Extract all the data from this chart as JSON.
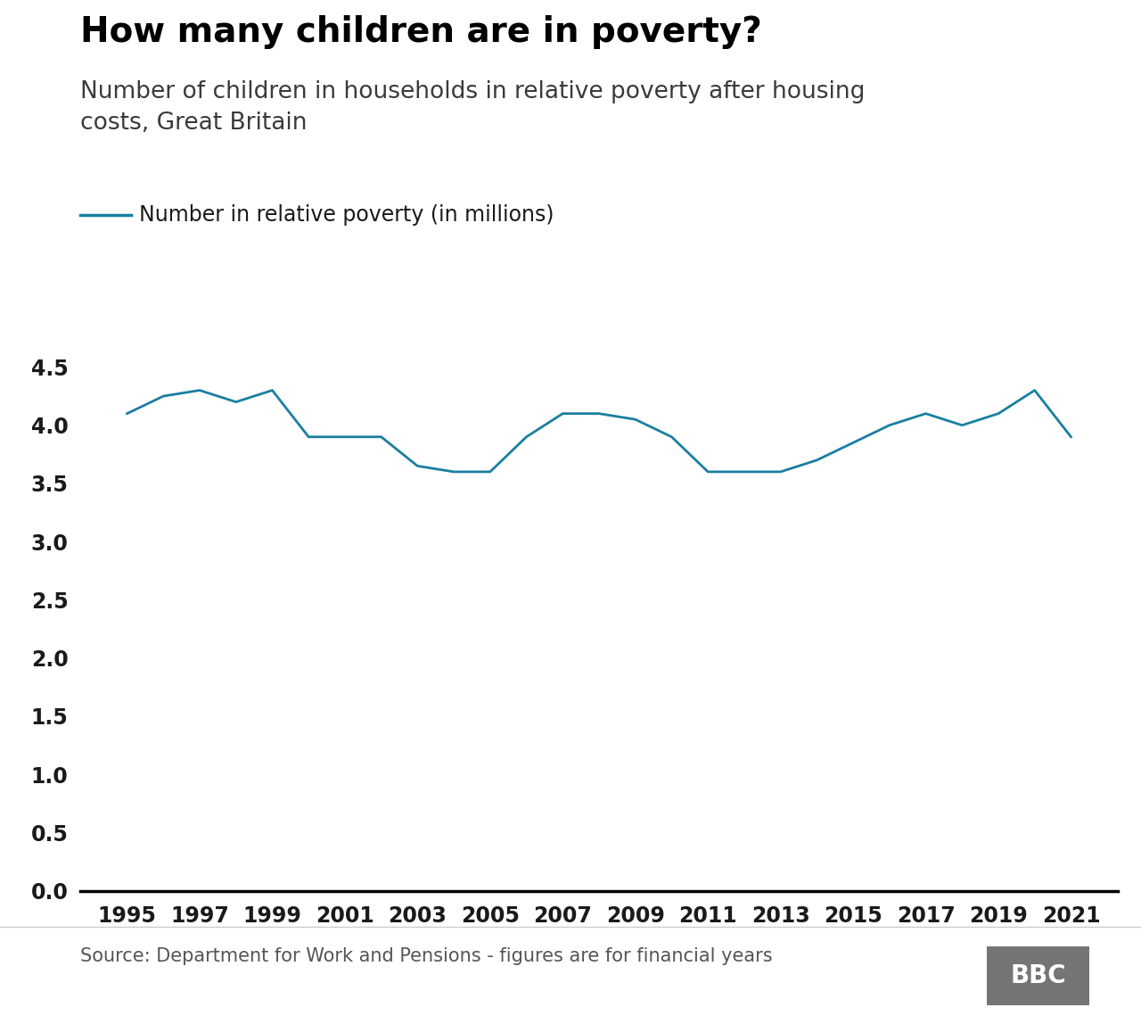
{
  "title": "How many children are in poverty?",
  "subtitle": "Number of children in households in relative poverty after housing\ncosts, Great Britain",
  "legend_label": "Number in relative poverty (in millions)",
  "source": "Source: Department for Work and Pensions - figures are for financial years",
  "line_color": "#1a7fa0",
  "line_width": 2.0,
  "years": [
    1995,
    1996,
    1997,
    1998,
    1999,
    2000,
    2001,
    2002,
    2003,
    2004,
    2005,
    2006,
    2007,
    2008,
    2009,
    2010,
    2011,
    2012,
    2013,
    2014,
    2015,
    2016,
    2017,
    2018,
    2019,
    2020,
    2021
  ],
  "values": [
    4.1,
    4.25,
    4.3,
    4.2,
    4.3,
    3.9,
    3.9,
    3.9,
    3.65,
    3.6,
    3.6,
    3.9,
    4.1,
    4.1,
    4.05,
    3.9,
    3.6,
    3.6,
    3.6,
    3.7,
    3.85,
    4.0,
    4.1,
    4.0,
    4.1,
    4.3,
    3.9
  ],
  "ylim": [
    0,
    4.75
  ],
  "yticks": [
    0.0,
    0.5,
    1.0,
    1.5,
    2.0,
    2.5,
    3.0,
    3.5,
    4.0,
    4.5
  ],
  "xticks": [
    1995,
    1997,
    1999,
    2001,
    2003,
    2005,
    2007,
    2009,
    2011,
    2013,
    2015,
    2017,
    2019,
    2021
  ],
  "background_color": "#ffffff",
  "title_fontsize": 28,
  "subtitle_fontsize": 19,
  "tick_fontsize": 17,
  "legend_fontsize": 17,
  "source_fontsize": 15,
  "bbc_box_color": "#757575",
  "bbc_text_color": "#ffffff"
}
